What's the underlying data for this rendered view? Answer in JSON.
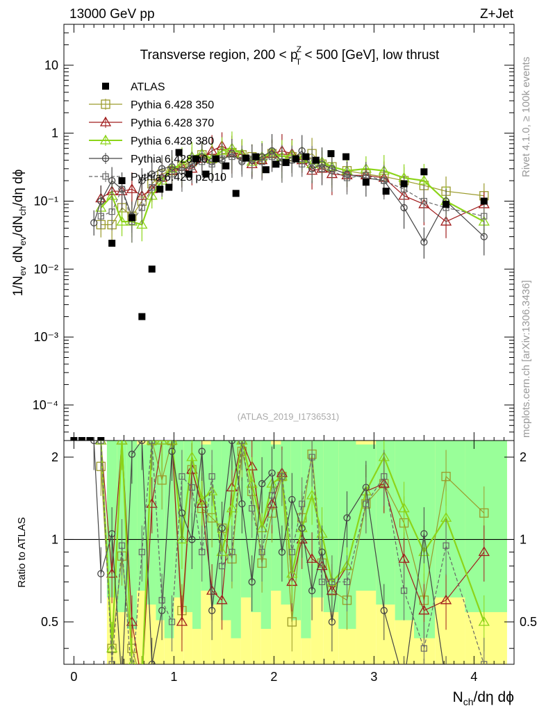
{
  "header": {
    "left": "13000 GeV pp",
    "right": "Z+Jet",
    "side_right": "Rivet 4.1.0, ≥ 100k events",
    "side_right2": "mcplots.cern.ch [arXiv:1306.3436]",
    "watermark": "(ATLAS_2019_I1736531)"
  },
  "chart_data": {
    "type": "scatter",
    "title": "Transverse region, 200 < p_T^Z < 500 [GeV], low thrust",
    "title_parts": {
      "pre": "Transverse region, 200 < p",
      "sup": "Z",
      "sub": "T",
      "post": " < 500 [GeV], low thrust"
    },
    "xlabel": "N_ch/dη dϕ",
    "ylabel": "1/N_ev dN_ev/dN_ch/dη dϕ",
    "ratio_ylabel": "Ratio to ATLAS",
    "xlim": [
      -0.1,
      4.4
    ],
    "ylim": [
      3e-05,
      40
    ],
    "ratio_ylim": [
      0.35,
      2.3
    ],
    "x_ticks": [
      "0",
      "1",
      "2",
      "3",
      "4"
    ],
    "y_ticks": [
      "10",
      "1",
      "10⁻¹",
      "10⁻²",
      "10⁻³",
      "10⁻⁴"
    ],
    "ratio_ticks": [
      "2",
      "1",
      "0.5"
    ],
    "legend": [
      "ATLAS",
      "Pythia 6.428 350",
      "Pythia 6.428 370",
      "Pythia 6.428 380",
      "Pythia 6.428 p0",
      "Pythia 6.428 p2010"
    ],
    "colors": {
      "ATLAS": "#000000",
      "p350": "#9a9a2a",
      "p370": "#a01c1c",
      "p380": "#8cd419",
      "p0": "#444444",
      "p2010": "#666666",
      "band_inner": "#99ff99",
      "band_outer": "#ffff88"
    },
    "atlas": {
      "x": [
        0.0,
        0.08,
        0.16,
        0.27,
        0.38,
        0.48,
        0.58,
        0.68,
        0.78,
        0.86,
        0.95,
        1.05,
        1.15,
        1.22,
        1.32,
        1.42,
        1.52,
        1.62,
        1.72,
        1.82,
        1.92,
        2.02,
        2.12,
        2.22,
        2.32,
        2.42,
        2.57,
        2.72,
        2.92,
        3.12,
        3.3,
        3.5,
        3.72,
        4.1
      ],
      "y": [
        3e-05,
        3e-05,
        3e-05,
        3e-05,
        0.024,
        0.2,
        0.057,
        0.002,
        0.01,
        0.15,
        0.16,
        0.52,
        0.25,
        0.42,
        0.25,
        0.42,
        0.33,
        0.13,
        0.43,
        0.45,
        0.29,
        0.35,
        0.37,
        0.42,
        0.45,
        0.4,
        0.5,
        0.45,
        0.19,
        0.14,
        0.18,
        0.27,
        0.09,
        0.1
      ]
    },
    "series": [
      {
        "name": "Pythia 6.428 350",
        "key": "p350",
        "marker": "square",
        "dash": false,
        "x": [
          0.27,
          0.38,
          0.48,
          0.58,
          0.68,
          0.78,
          0.88,
          0.98,
          1.08,
          1.18,
          1.28,
          1.38,
          1.48,
          1.58,
          1.68,
          1.78,
          1.88,
          1.98,
          2.08,
          2.18,
          2.28,
          2.38,
          2.48,
          2.58,
          2.73,
          2.92,
          3.1,
          3.3,
          3.5,
          3.72,
          4.1
        ],
        "y": [
          0.045,
          0.045,
          0.08,
          0.06,
          0.1,
          0.18,
          0.25,
          0.28,
          0.33,
          0.38,
          0.48,
          0.42,
          0.5,
          0.52,
          0.48,
          0.45,
          0.42,
          0.5,
          0.4,
          0.45,
          0.42,
          0.5,
          0.35,
          0.32,
          0.28,
          0.25,
          0.23,
          0.2,
          0.17,
          0.14,
          0.12
        ]
      },
      {
        "name": "Pythia 6.428 370",
        "key": "p370",
        "marker": "triangle",
        "dash": false,
        "x": [
          0.27,
          0.38,
          0.48,
          0.58,
          0.68,
          0.78,
          0.88,
          0.98,
          1.08,
          1.18,
          1.28,
          1.38,
          1.48,
          1.58,
          1.68,
          1.78,
          1.88,
          1.98,
          2.08,
          2.18,
          2.28,
          2.38,
          2.48,
          2.58,
          2.73,
          2.92,
          3.1,
          3.3,
          3.5,
          3.72,
          4.1
        ],
        "y": [
          0.11,
          0.14,
          0.14,
          0.15,
          0.12,
          0.15,
          0.22,
          0.28,
          0.32,
          0.3,
          0.42,
          0.55,
          0.65,
          0.52,
          0.48,
          0.35,
          0.4,
          0.5,
          0.55,
          0.5,
          0.4,
          0.28,
          0.3,
          0.25,
          0.24,
          0.24,
          0.22,
          0.12,
          0.09,
          0.05,
          0.09
        ]
      },
      {
        "name": "Pythia 6.428 380",
        "key": "p380",
        "marker": "triangle",
        "dash": false,
        "x": [
          0.27,
          0.38,
          0.48,
          0.58,
          0.68,
          0.78,
          0.88,
          0.98,
          1.08,
          1.18,
          1.28,
          1.38,
          1.48,
          1.58,
          1.68,
          1.78,
          1.88,
          1.98,
          2.08,
          2.18,
          2.28,
          2.38,
          2.48,
          2.58,
          2.73,
          2.92,
          3.1,
          3.3,
          3.5,
          3.72,
          4.1
        ],
        "y": [
          0.08,
          0.12,
          0.05,
          0.05,
          0.045,
          0.12,
          0.2,
          0.3,
          0.35,
          0.45,
          0.5,
          0.42,
          0.55,
          0.6,
          0.5,
          0.38,
          0.45,
          0.52,
          0.45,
          0.48,
          0.42,
          0.35,
          0.38,
          0.32,
          0.28,
          0.3,
          0.28,
          0.22,
          0.2,
          0.1,
          0.05
        ]
      },
      {
        "name": "Pythia 6.428 p0",
        "key": "p0",
        "marker": "circle",
        "dash": false,
        "x": [
          0.2,
          0.27,
          0.38,
          0.48,
          0.58,
          0.68,
          0.78,
          0.88,
          0.98,
          1.08,
          1.18,
          1.28,
          1.38,
          1.48,
          1.58,
          1.68,
          1.78,
          1.88,
          1.98,
          2.08,
          2.18,
          2.28,
          2.38,
          2.48,
          2.58,
          2.73,
          2.92,
          3.1,
          3.3,
          3.5,
          3.72,
          4.1
        ],
        "y": [
          0.048,
          0.1,
          0.2,
          0.15,
          0.06,
          0.2,
          0.25,
          0.3,
          0.32,
          0.28,
          0.35,
          0.45,
          0.38,
          0.4,
          0.5,
          0.38,
          0.4,
          0.45,
          0.55,
          0.38,
          0.4,
          0.55,
          0.3,
          0.35,
          0.3,
          0.25,
          0.22,
          0.2,
          0.08,
          0.025,
          0.1,
          0.03
        ]
      },
      {
        "name": "Pythia 6.428 p2010",
        "key": "p2010",
        "marker": "square-small",
        "dash": true,
        "x": [
          0.27,
          0.38,
          0.48,
          0.58,
          0.68,
          0.78,
          0.88,
          0.98,
          1.08,
          1.18,
          1.28,
          1.38,
          1.48,
          1.58,
          1.68,
          1.78,
          1.88,
          1.98,
          2.08,
          2.18,
          2.28,
          2.38,
          2.48,
          2.58,
          2.73,
          2.92,
          3.1,
          3.3,
          3.5,
          3.72,
          4.1
        ],
        "y": [
          0.06,
          0.07,
          0.15,
          0.05,
          0.08,
          0.16,
          0.22,
          0.25,
          0.28,
          0.32,
          0.38,
          0.35,
          0.42,
          0.45,
          0.4,
          0.42,
          0.38,
          0.45,
          0.38,
          0.4,
          0.35,
          0.38,
          0.3,
          0.28,
          0.22,
          0.24,
          0.2,
          0.15,
          0.1,
          0.08,
          0.06
        ]
      }
    ],
    "ratios": {
      "p350": [
        1.85,
        0.4,
        0.87,
        0.4,
        0.3,
        2.3,
        1.65,
        2.3,
        0.55,
        1.8,
        1.3,
        1.2,
        1.1,
        0.85,
        2.1,
        1.5,
        0.82,
        1.25,
        1.7,
        0.5,
        1.2,
        2.05,
        0.82,
        0.65,
        0.6,
        1.35,
        1.6,
        1.15,
        0.6,
        1.7,
        1.25
      ],
      "p370": [
        2.3,
        0.75,
        2.3,
        0.5,
        0.3,
        1.35,
        2.3,
        2.3,
        0.5,
        1.8,
        1.35,
        0.65,
        0.6,
        1.55,
        2.3,
        1.85,
        1.1,
        1.35,
        1.75,
        0.7,
        1.0,
        0.85,
        0.8,
        0.65,
        0.8,
        1.5,
        1.6,
        0.85,
        0.55,
        0.6,
        0.9
      ],
      "p380": [
        2.3,
        0.4,
        2.3,
        0.35,
        0.3,
        2.3,
        2.3,
        2.3,
        1.0,
        2.0,
        1.4,
        1.5,
        0.9,
        1.3,
        2.3,
        1.6,
        1.1,
        1.6,
        1.7,
        0.75,
        1.1,
        1.45,
        1.05,
        0.7,
        0.8,
        1.5,
        2.0,
        1.3,
        0.9,
        1.2,
        0.5
      ],
      "p0": [
        2.3,
        0.75,
        1.05,
        0.3,
        2.05,
        2.3,
        0.35,
        0.55,
        2.1,
        1.25,
        1.0,
        2.1,
        0.55,
        1.1,
        2.3,
        1.35,
        0.7,
        1.6,
        1.75,
        0.9,
        1.4,
        1.1,
        0.65,
        0.9,
        0.5,
        1.2,
        1.55,
        0.55,
        0.3,
        1.05,
        0.3
      ],
      "p2010": [
        2.3,
        0.35,
        0.95,
        0.3,
        0.9,
        2.3,
        0.6,
        0.5,
        1.7,
        1.55,
        0.9,
        1.7,
        0.8,
        0.9,
        2.3,
        1.3,
        0.9,
        1.45,
        1.7,
        0.9,
        1.35,
        2.0,
        0.7,
        0.7,
        0.7,
        1.35,
        1.7,
        0.65,
        0.4,
        0.95,
        0.35
      ]
    }
  }
}
